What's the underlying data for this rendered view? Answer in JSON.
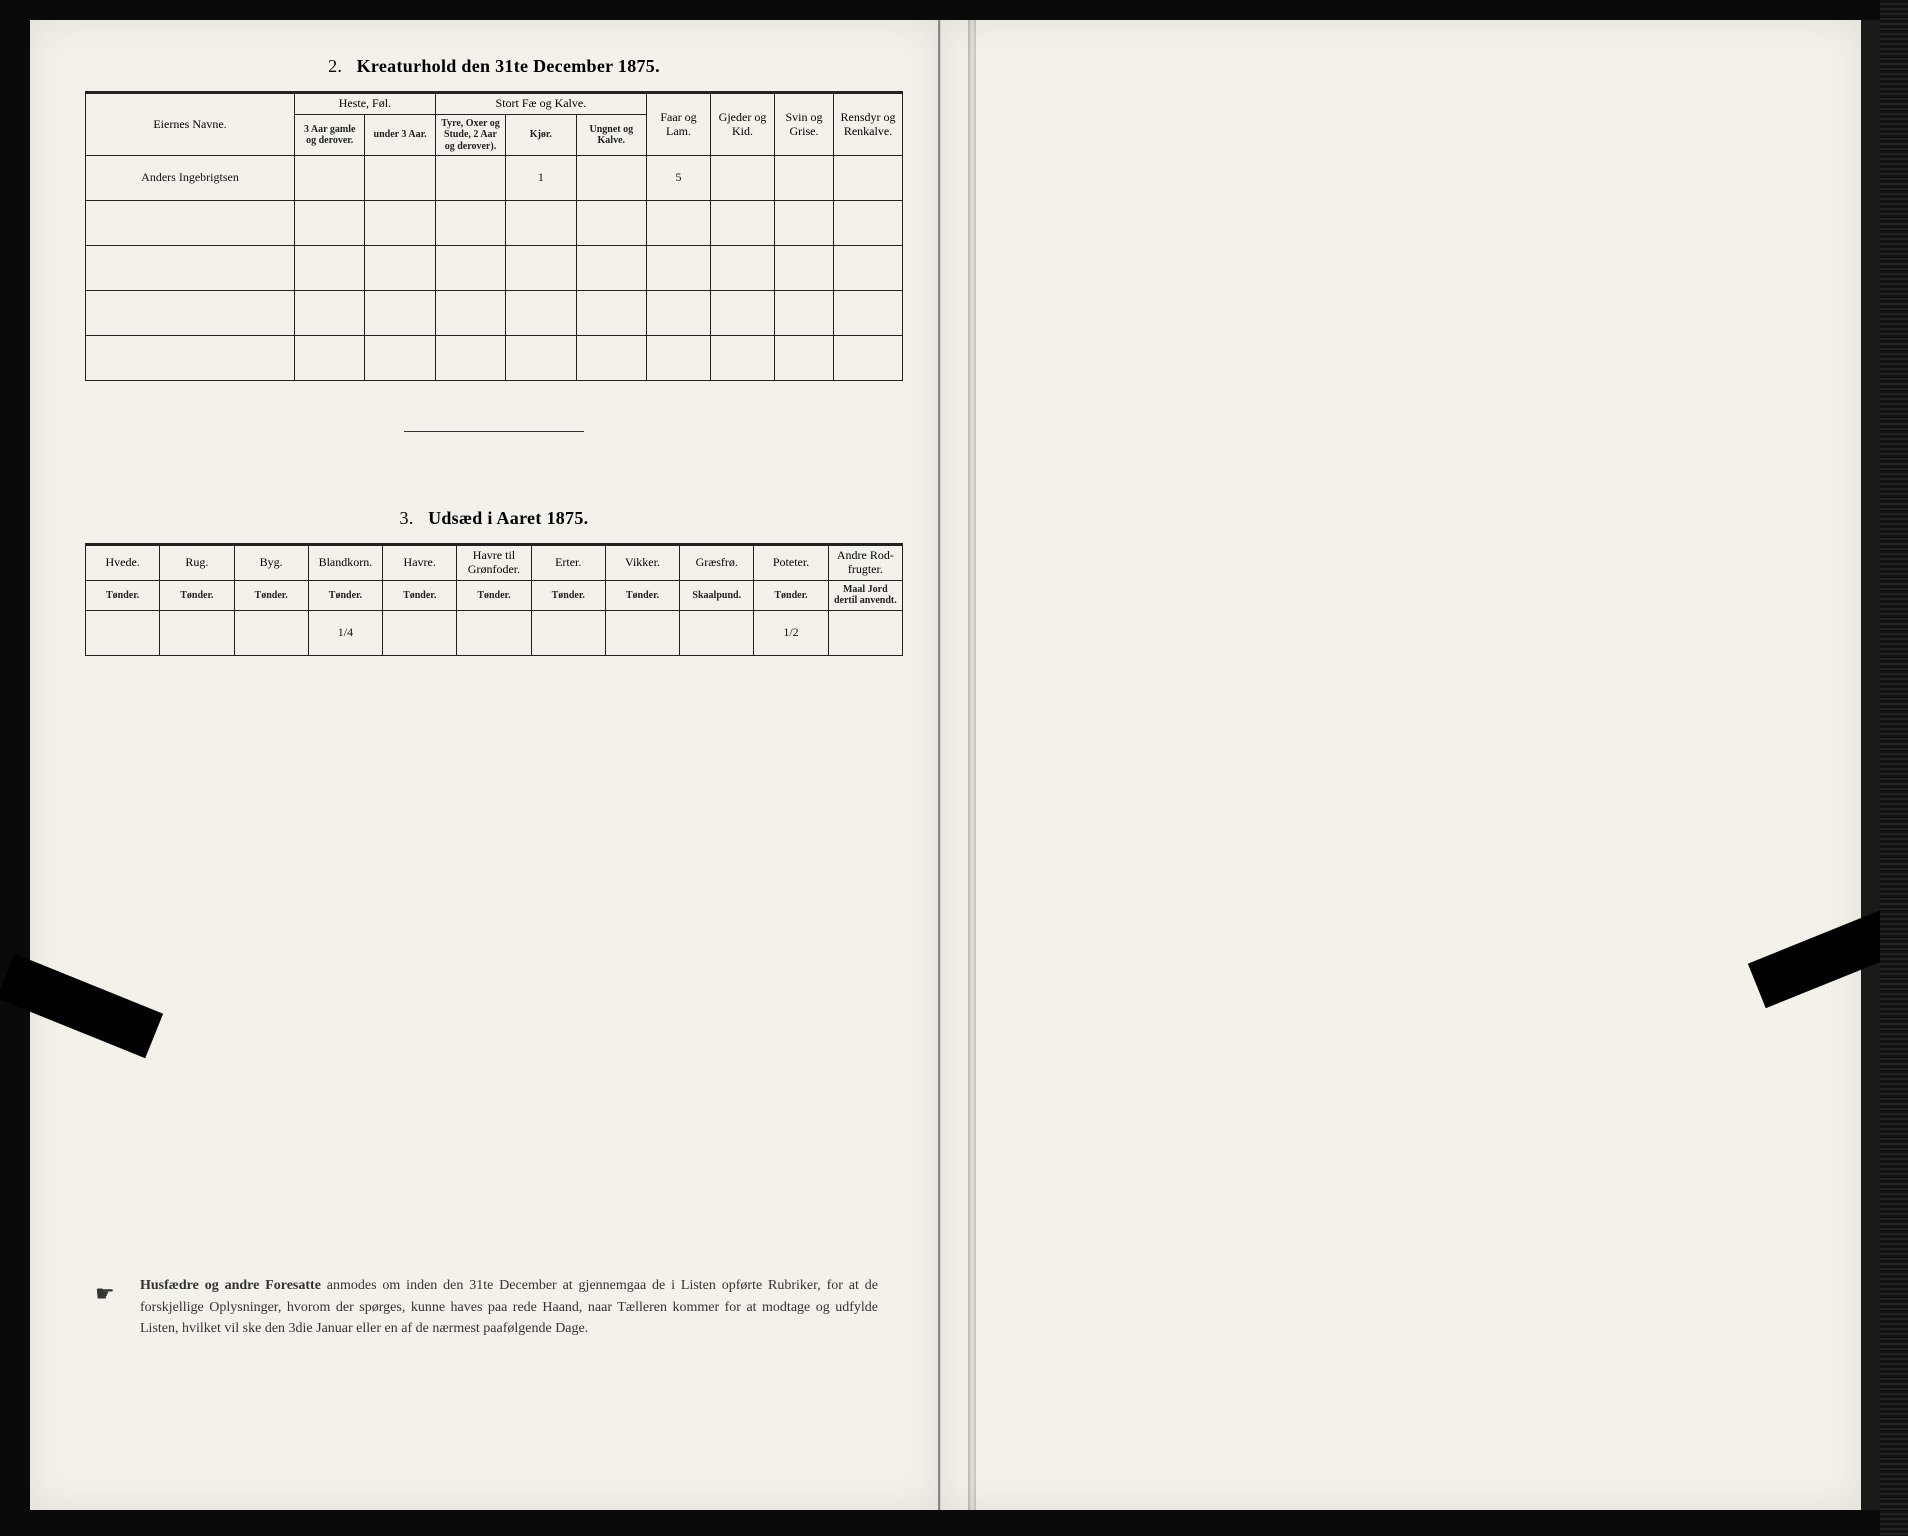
{
  "page": {
    "background": "#0a0a0a",
    "paper": "#f4f1ea"
  },
  "section2": {
    "number": "2.",
    "title": "Kreaturhold den 31te December 1875.",
    "columns": {
      "owner": "Eiernes Navne.",
      "horses": "Heste, Føl.",
      "horses_sub1": "3 Aar gamle og derover.",
      "horses_sub2": "under 3 Aar.",
      "cattle": "Stort Fæ og Kalve.",
      "cattle_sub1": "Tyre, Oxer og Stude, 2 Aar og derover).",
      "cattle_sub2": "Kjør.",
      "cattle_sub3": "Ungnet og Kalve.",
      "sheep": "Faar og Lam.",
      "goats": "Gjeder og Kid.",
      "pigs": "Svin og Grise.",
      "reindeer": "Rensdyr og Renkalve."
    },
    "rows": [
      {
        "owner": "Anders Ingebrigtsen",
        "kjor": "1",
        "faar": "5"
      },
      {
        "owner": "",
        "kjor": "",
        "faar": ""
      },
      {
        "owner": "",
        "kjor": "",
        "faar": ""
      },
      {
        "owner": "",
        "kjor": "",
        "faar": ""
      },
      {
        "owner": "",
        "kjor": "",
        "faar": ""
      }
    ]
  },
  "section3": {
    "number": "3.",
    "title": "Udsæd i Aaret 1875.",
    "columns": [
      {
        "name": "Hvede.",
        "unit": "Tønder."
      },
      {
        "name": "Rug.",
        "unit": "Tønder."
      },
      {
        "name": "Byg.",
        "unit": "Tønder."
      },
      {
        "name": "Blandkorn.",
        "unit": "Tønder."
      },
      {
        "name": "Havre.",
        "unit": "Tønder."
      },
      {
        "name": "Havre til Grønfoder.",
        "unit": "Tønder."
      },
      {
        "name": "Erter.",
        "unit": "Tønder."
      },
      {
        "name": "Vikker.",
        "unit": "Tønder."
      },
      {
        "name": "Græsfrø.",
        "unit": "Skaalpund."
      },
      {
        "name": "Poteter.",
        "unit": "Tønder."
      },
      {
        "name": "Andre Rod-frugter.",
        "unit": "Maal Jord dertil anvendt."
      }
    ],
    "row": [
      "",
      "",
      "",
      "1/4",
      "",
      "",
      "",
      "",
      "",
      "1/2",
      ""
    ]
  },
  "footer": {
    "lead": "Husfædre og andre Foresatte",
    "text": " anmodes om inden den 31te December at gjennemgaa de i Listen opførte Rubriker, for at de forskjellige Oplysninger, hvorom der spørges, kunne haves paa rede Haand, naar Tælleren kommer for at modtage og udfylde Listen, hvilket vil ske den 3die Januar eller en af de nærmest paafølgende Dage."
  }
}
